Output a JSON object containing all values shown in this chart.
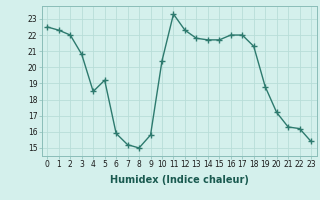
{
  "x": [
    0,
    1,
    2,
    3,
    4,
    5,
    6,
    7,
    8,
    9,
    10,
    11,
    12,
    13,
    14,
    15,
    16,
    17,
    18,
    19,
    20,
    21,
    22,
    23
  ],
  "y": [
    22.5,
    22.3,
    22.0,
    20.8,
    18.5,
    19.2,
    15.9,
    15.2,
    15.0,
    15.8,
    20.4,
    23.3,
    22.3,
    21.8,
    21.7,
    21.7,
    22.0,
    22.0,
    21.3,
    18.8,
    17.2,
    16.3,
    16.2,
    15.4
  ],
  "ylim": [
    14.5,
    23.8
  ],
  "xlim": [
    -0.5,
    23.5
  ],
  "yticks": [
    15,
    16,
    17,
    18,
    19,
    20,
    21,
    22,
    23
  ],
  "xticks": [
    0,
    1,
    2,
    3,
    4,
    5,
    6,
    7,
    8,
    9,
    10,
    11,
    12,
    13,
    14,
    15,
    16,
    17,
    18,
    19,
    20,
    21,
    22,
    23
  ],
  "xlabel": "Humidex (Indice chaleur)",
  "line_color": "#2d7a6e",
  "marker": "+",
  "marker_size": 4,
  "background_color": "#d4f0ec",
  "grid_color": "#b8ddd8",
  "tick_label_fontsize": 5.5,
  "xlabel_fontsize": 7.0,
  "line_width": 1.0
}
